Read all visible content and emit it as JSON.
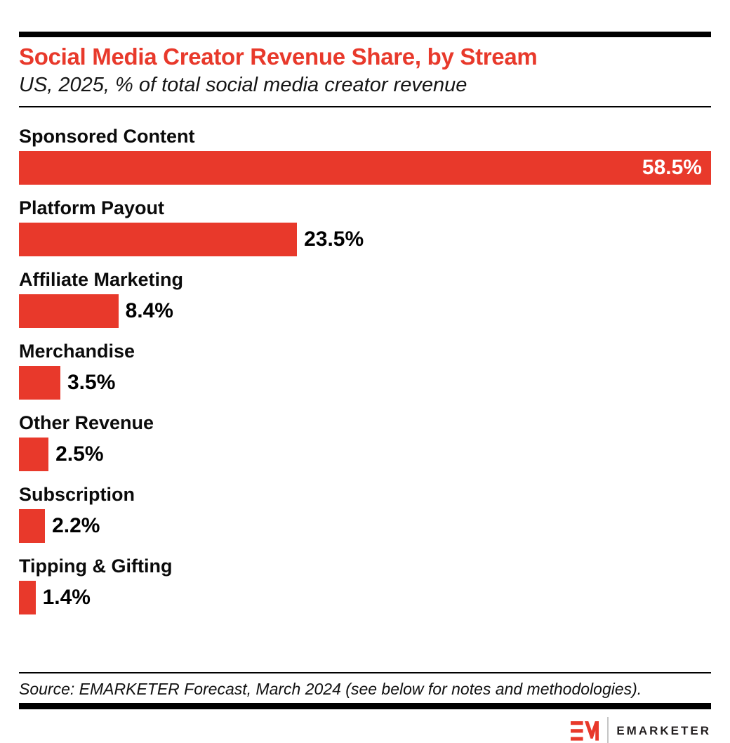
{
  "header": {
    "title": "Social Media Creator Revenue Share, by Stream",
    "subtitle": "US, 2025, % of total social media creator revenue"
  },
  "chart_data": {
    "type": "bar",
    "orientation": "horizontal",
    "title": "Social Media Creator Revenue Share, by Stream",
    "subtitle": "US, 2025, % of total social media creator revenue",
    "categories": [
      "Sponsored Content",
      "Platform Payout",
      "Affiliate Marketing",
      "Merchandise",
      "Other Revenue",
      "Subscription",
      "Tipping & Gifting"
    ],
    "values": [
      58.5,
      23.5,
      8.4,
      3.5,
      2.5,
      2.2,
      1.4
    ],
    "value_labels": [
      "58.5%",
      "23.5%",
      "8.4%",
      "3.5%",
      "2.5%",
      "2.2%",
      "1.4%"
    ],
    "xlabel": "",
    "ylabel": "",
    "xlim": [
      0,
      58.5
    ],
    "grid": false,
    "legend": false,
    "bar_color": "#e8392b",
    "value_label_style": "largest bar labeled inside in white; all others labeled in black at end of bar"
  },
  "footer": {
    "source": "Source: EMARKETER Forecast, March 2024 (see below for notes and methodologies).",
    "logo_wordmark": "EMARKETER"
  },
  "colors": {
    "accent_red": "#e8392b",
    "rule_black": "#000000",
    "text_black": "#0b0b0b",
    "logo_text": "#231f20",
    "logo_divider_gray": "#c6c6c6",
    "background": "#ffffff"
  }
}
